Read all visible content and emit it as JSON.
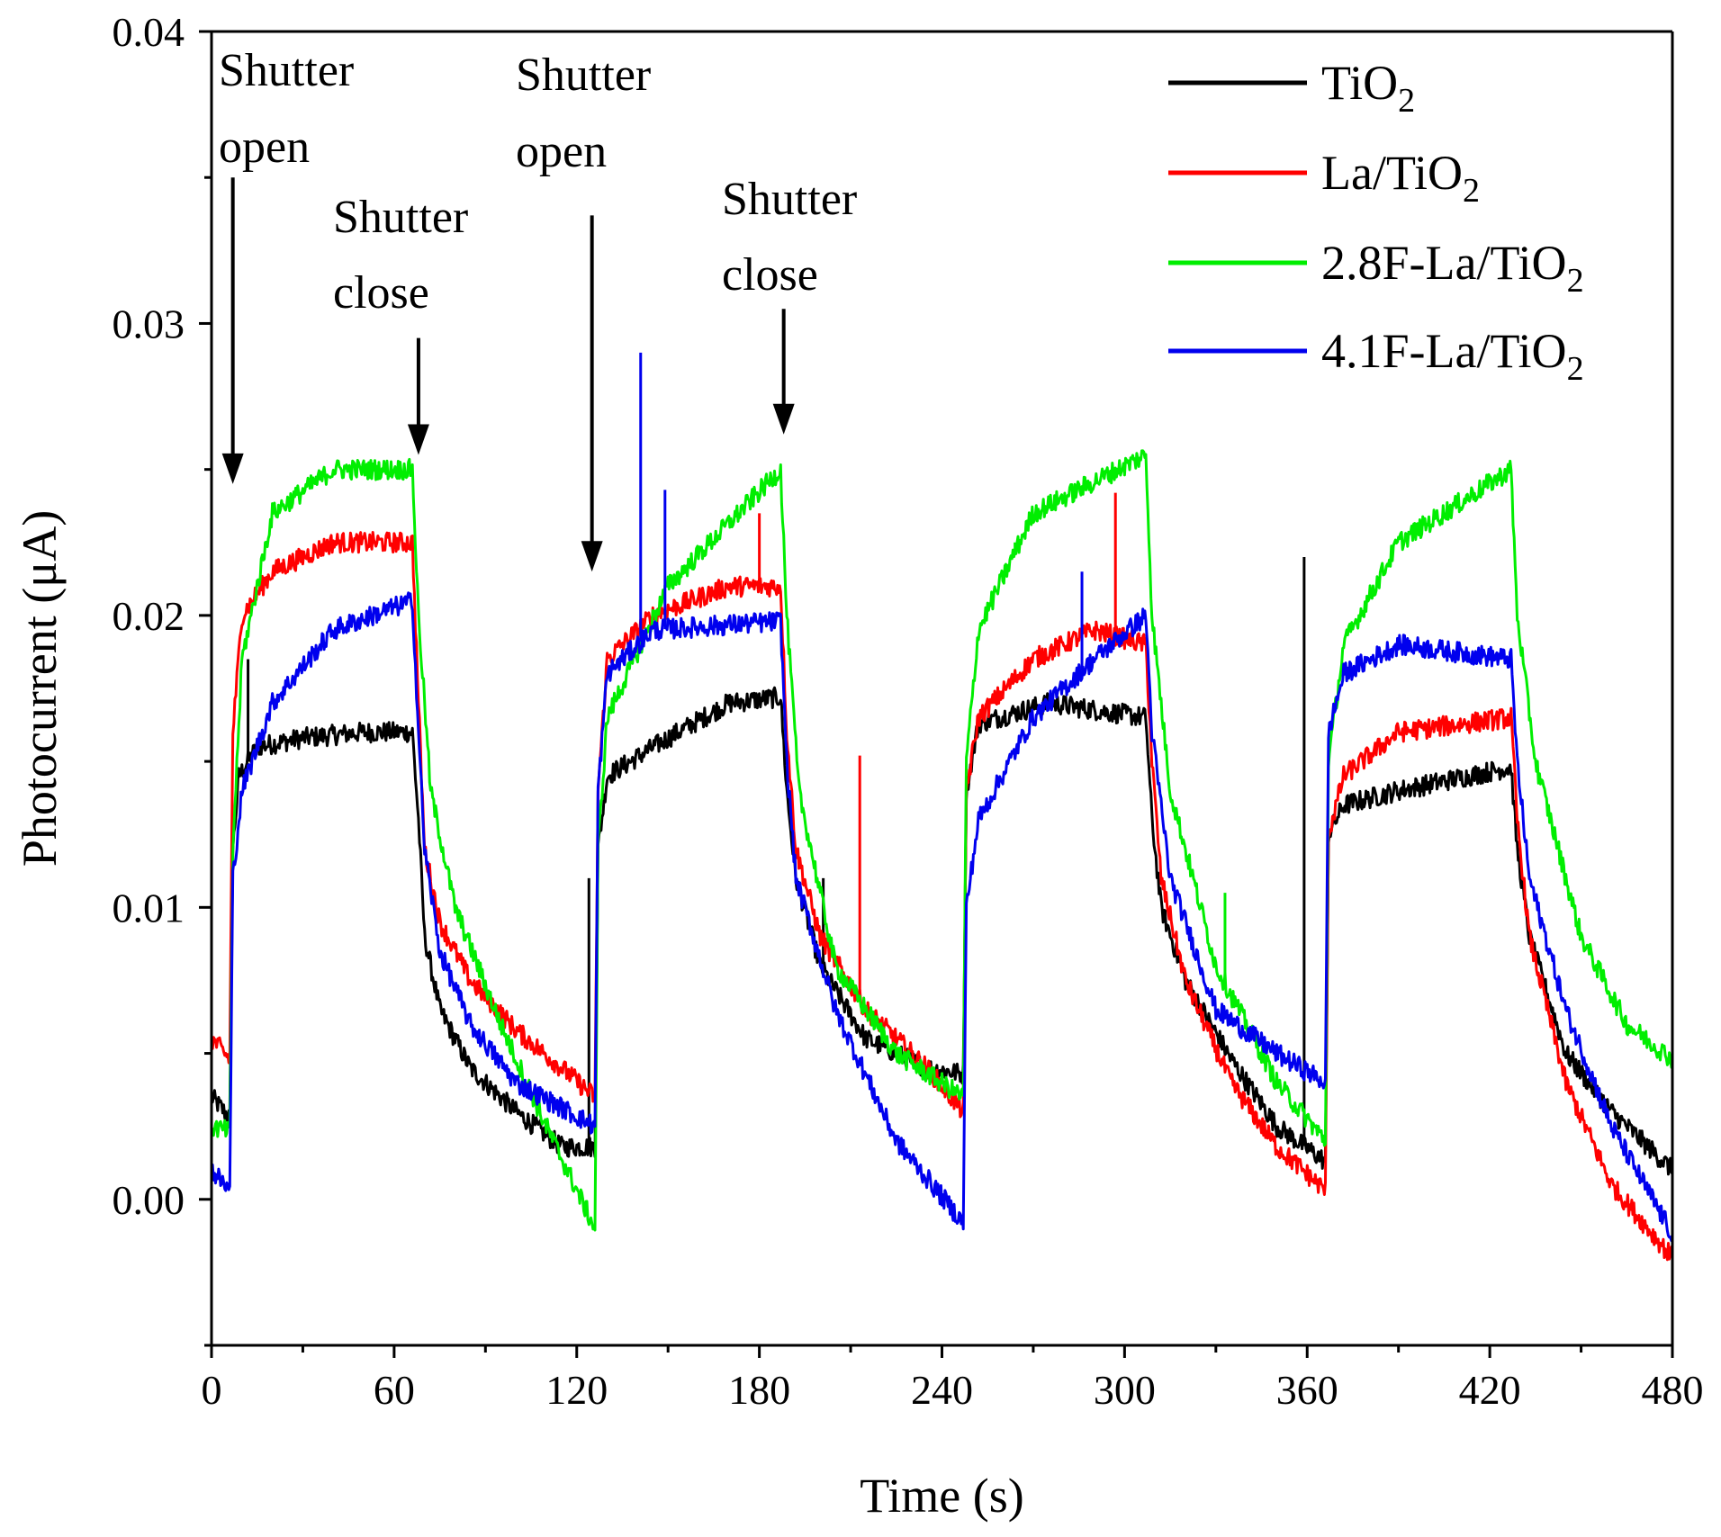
{
  "chart_data": {
    "type": "line",
    "xlabel": "Time (s)",
    "ylabel": "Photocurrent (μA)",
    "xlim": [
      0,
      480
    ],
    "ylim": [
      -0.005,
      0.04
    ],
    "xticks": [
      0,
      60,
      120,
      180,
      240,
      300,
      360,
      420,
      480
    ],
    "xtick_labels": [
      "0",
      "60",
      "120",
      "180",
      "240",
      "300",
      "360",
      "420",
      "480"
    ],
    "yticks": [
      0.0,
      0.01,
      0.02,
      0.03,
      0.04
    ],
    "ytick_labels": [
      "0.00",
      "0.01",
      "0.02",
      "0.03",
      "0.04"
    ],
    "legend_position": "top-right",
    "series": [
      {
        "name": "TiO2",
        "label_main": "TiO",
        "label_sub": "2",
        "color": "#000000",
        "points": [
          [
            0,
            0.0035
          ],
          [
            6,
            0.0028
          ],
          [
            7,
            0.012
          ],
          [
            9,
            0.0145
          ],
          [
            15,
            0.0155
          ],
          [
            30,
            0.0158
          ],
          [
            50,
            0.016
          ],
          [
            66,
            0.016
          ],
          [
            68,
            0.013
          ],
          [
            70,
            0.009
          ],
          [
            75,
            0.0065
          ],
          [
            85,
            0.0045
          ],
          [
            100,
            0.003
          ],
          [
            115,
            0.0018
          ],
          [
            126,
            0.0018
          ],
          [
            127,
            0.012
          ],
          [
            130,
            0.0145
          ],
          [
            150,
            0.0158
          ],
          [
            170,
            0.017
          ],
          [
            187,
            0.0172
          ],
          [
            189,
            0.014
          ],
          [
            192,
            0.011
          ],
          [
            200,
            0.008
          ],
          [
            215,
            0.0055
          ],
          [
            235,
            0.0045
          ],
          [
            247,
            0.0043
          ],
          [
            248,
            0.014
          ],
          [
            252,
            0.0163
          ],
          [
            275,
            0.017
          ],
          [
            307,
            0.0165
          ],
          [
            309,
            0.013
          ],
          [
            312,
            0.01
          ],
          [
            320,
            0.0075
          ],
          [
            335,
            0.0048
          ],
          [
            350,
            0.0025
          ],
          [
            366,
            0.0013
          ],
          [
            367,
            0.0125
          ],
          [
            372,
            0.0135
          ],
          [
            390,
            0.014
          ],
          [
            427,
            0.0148
          ],
          [
            429,
            0.012
          ],
          [
            433,
            0.009
          ],
          [
            445,
            0.005
          ],
          [
            460,
            0.003
          ],
          [
            480,
            0.001
          ]
        ],
        "spikes": [
          [
            12,
            0.0185
          ],
          [
            124,
            0.011
          ],
          [
            201,
            0.011
          ],
          [
            359,
            0.022
          ]
        ]
      },
      {
        "name": "La/TiO2",
        "label_main": "La/TiO",
        "label_sub": "2",
        "color": "#ff0000",
        "points": [
          [
            0,
            0.0055
          ],
          [
            6,
            0.0048
          ],
          [
            7,
            0.016
          ],
          [
            10,
            0.02
          ],
          [
            20,
            0.0215
          ],
          [
            40,
            0.0225
          ],
          [
            66,
            0.0225
          ],
          [
            68,
            0.017
          ],
          [
            70,
            0.012
          ],
          [
            75,
            0.0095
          ],
          [
            85,
            0.0075
          ],
          [
            100,
            0.0058
          ],
          [
            115,
            0.0045
          ],
          [
            126,
            0.0035
          ],
          [
            127,
            0.014
          ],
          [
            130,
            0.0185
          ],
          [
            145,
            0.02
          ],
          [
            170,
            0.021
          ],
          [
            187,
            0.021
          ],
          [
            189,
            0.016
          ],
          [
            192,
            0.012
          ],
          [
            200,
            0.009
          ],
          [
            215,
            0.0065
          ],
          [
            235,
            0.0045
          ],
          [
            247,
            0.003
          ],
          [
            248,
            0.014
          ],
          [
            252,
            0.0165
          ],
          [
            270,
            0.0185
          ],
          [
            290,
            0.0195
          ],
          [
            307,
            0.019
          ],
          [
            309,
            0.015
          ],
          [
            312,
            0.011
          ],
          [
            320,
            0.0075
          ],
          [
            335,
            0.004
          ],
          [
            350,
            0.0018
          ],
          [
            366,
            0.0003
          ],
          [
            367,
            0.0125
          ],
          [
            372,
            0.0145
          ],
          [
            390,
            0.016
          ],
          [
            427,
            0.0165
          ],
          [
            429,
            0.013
          ],
          [
            433,
            0.009
          ],
          [
            445,
            0.004
          ],
          [
            460,
            0.0005
          ],
          [
            480,
            -0.002
          ]
        ],
        "spikes": [
          [
            213,
            0.0152
          ],
          [
            297,
            0.0242
          ],
          [
            180,
            0.0235
          ]
        ]
      },
      {
        "name": "2.8F-La/TiO2",
        "label_main": "2.8F-La/TiO",
        "label_sub": "2",
        "color": "#00ee00",
        "points": [
          [
            0,
            0.0025
          ],
          [
            6,
            0.0023
          ],
          [
            7,
            0.012
          ],
          [
            10,
            0.0185
          ],
          [
            20,
            0.0235
          ],
          [
            40,
            0.025
          ],
          [
            66,
            0.025
          ],
          [
            68,
            0.02
          ],
          [
            72,
            0.014
          ],
          [
            80,
            0.01
          ],
          [
            95,
            0.006
          ],
          [
            110,
            0.0025
          ],
          [
            126,
            -0.001
          ],
          [
            127,
            0.012
          ],
          [
            130,
            0.0165
          ],
          [
            150,
            0.021
          ],
          [
            187,
            0.025
          ],
          [
            189,
            0.02
          ],
          [
            193,
            0.014
          ],
          [
            205,
            0.008
          ],
          [
            225,
            0.005
          ],
          [
            247,
            0.0035
          ],
          [
            248,
            0.015
          ],
          [
            252,
            0.0195
          ],
          [
            270,
            0.0235
          ],
          [
            307,
            0.0255
          ],
          [
            309,
            0.02
          ],
          [
            315,
            0.014
          ],
          [
            330,
            0.008
          ],
          [
            350,
            0.004
          ],
          [
            366,
            0.002
          ],
          [
            367,
            0.015
          ],
          [
            372,
            0.019
          ],
          [
            390,
            0.0225
          ],
          [
            427,
            0.025
          ],
          [
            429,
            0.02
          ],
          [
            435,
            0.015
          ],
          [
            450,
            0.009
          ],
          [
            465,
            0.006
          ],
          [
            480,
            0.0048
          ]
        ],
        "spikes": [
          [
            333,
            0.0105
          ],
          [
            264,
            0.0225
          ]
        ]
      },
      {
        "name": "4.1F-La/TiO2",
        "label_main": "4.1F-La/TiO",
        "label_sub": "2",
        "color": "#0000ee",
        "points": [
          [
            0,
            0.001
          ],
          [
            6,
            0.0003
          ],
          [
            7,
            0.011
          ],
          [
            10,
            0.014
          ],
          [
            20,
            0.017
          ],
          [
            40,
            0.0195
          ],
          [
            66,
            0.0205
          ],
          [
            68,
            0.016
          ],
          [
            70,
            0.012
          ],
          [
            75,
            0.0085
          ],
          [
            85,
            0.006
          ],
          [
            100,
            0.004
          ],
          [
            126,
            0.0025
          ],
          [
            127,
            0.014
          ],
          [
            130,
            0.018
          ],
          [
            145,
            0.0195
          ],
          [
            187,
            0.0198
          ],
          [
            189,
            0.015
          ],
          [
            192,
            0.011
          ],
          [
            205,
            0.0065
          ],
          [
            225,
            0.002
          ],
          [
            247,
            -0.0008
          ],
          [
            248,
            0.01
          ],
          [
            252,
            0.013
          ],
          [
            270,
            0.0165
          ],
          [
            290,
            0.0185
          ],
          [
            307,
            0.02
          ],
          [
            309,
            0.016
          ],
          [
            315,
            0.011
          ],
          [
            330,
            0.0065
          ],
          [
            350,
            0.005
          ],
          [
            366,
            0.004
          ],
          [
            367,
            0.016
          ],
          [
            372,
            0.018
          ],
          [
            390,
            0.019
          ],
          [
            427,
            0.0185
          ],
          [
            429,
            0.015
          ],
          [
            433,
            0.011
          ],
          [
            445,
            0.0065
          ],
          [
            460,
            0.0025
          ],
          [
            480,
            -0.0012
          ]
        ],
        "spikes": [
          [
            141,
            0.029
          ],
          [
            149,
            0.0243
          ],
          [
            286,
            0.0215
          ]
        ]
      }
    ],
    "annotations": [
      {
        "line1": "Shutter",
        "line2": "open",
        "target": [
          7,
          0.0245
        ],
        "tail": [
          7,
          0.035
        ]
      },
      {
        "line1": "Shutter",
        "line2": "close",
        "target": [
          68,
          0.0255
        ],
        "tail": [
          68,
          0.0295
        ]
      },
      {
        "line1": "Shutter",
        "line2": "open",
        "target": [
          125,
          0.0215
        ],
        "tail": [
          125,
          0.0337
        ]
      },
      {
        "line1": "Shutter",
        "line2": "close",
        "target": [
          188,
          0.0262
        ],
        "tail": [
          188,
          0.0305
        ]
      }
    ]
  }
}
